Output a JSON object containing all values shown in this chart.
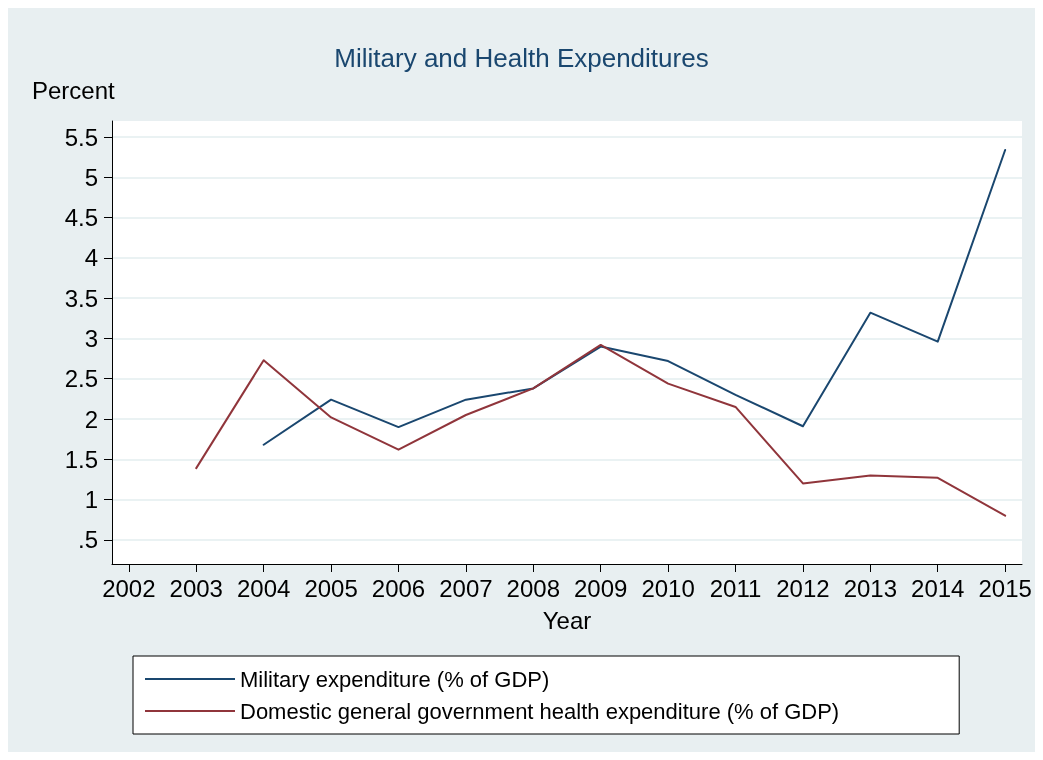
{
  "chart_data": {
    "type": "line",
    "title": "Military and Health Expenditures",
    "xlabel": "Year",
    "ylabel": "Percent",
    "x": [
      2003,
      2004,
      2005,
      2006,
      2007,
      2008,
      2009,
      2010,
      2011,
      2012,
      2013,
      2014,
      2015
    ],
    "series": [
      {
        "name": "Military expenditure (% of GDP)",
        "color": "#1a476f",
        "values": [
          null,
          1.68,
          2.24,
          1.9,
          2.24,
          2.38,
          2.9,
          2.72,
          2.3,
          1.91,
          3.32,
          2.96,
          5.34
        ]
      },
      {
        "name": "Domestic general government health expenditure (% of GDP)",
        "color": "#90353b",
        "values": [
          1.39,
          2.73,
          2.02,
          1.62,
          2.05,
          2.38,
          2.92,
          2.44,
          2.15,
          1.2,
          1.3,
          1.27,
          0.8
        ]
      }
    ],
    "xlim": [
      2001.75,
      2015.25
    ],
    "xticks": [
      2002,
      2003,
      2004,
      2005,
      2006,
      2007,
      2008,
      2009,
      2010,
      2011,
      2012,
      2013,
      2014,
      2015
    ],
    "ylim": [
      0.2,
      5.7
    ],
    "yticks": [
      {
        "value": 0.5,
        "label": ".5"
      },
      1,
      1.5,
      2,
      2.5,
      3,
      3.5,
      4,
      4.5,
      5,
      5.5
    ],
    "grid": "y",
    "legend": "bottom",
    "marker": "none",
    "line_style": "solid"
  }
}
